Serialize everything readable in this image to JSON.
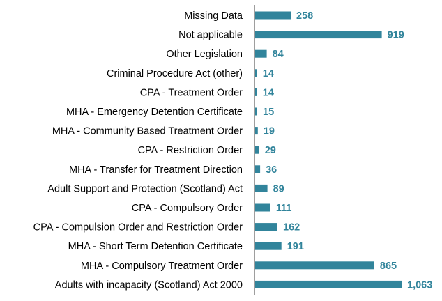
{
  "chart_data": {
    "type": "bar",
    "orientation": "horizontal",
    "categories": [
      "Missing Data",
      "Not applicable",
      "Other Legislation",
      "Criminal Procedure Act (other)",
      "CPA - Treatment Order",
      "MHA - Emergency Detention Certificate",
      "MHA - Community Based Treatment Order",
      "CPA - Restriction Order",
      "MHA - Transfer for Treatment Direction",
      "Adult Support and Protection (Scotland) Act",
      "CPA - Compulsory Order",
      "CPA - Compulsion Order and Restriction Order",
      "MHA - Short Term Detention Certificate",
      "MHA - Compulsory Treatment Order",
      "Adults with incapacity (Scotland) Act 2000"
    ],
    "values": [
      258,
      919,
      84,
      14,
      14,
      15,
      19,
      29,
      36,
      89,
      111,
      162,
      191,
      865,
      1063
    ],
    "value_labels": [
      "258",
      "919",
      "84",
      "14",
      "14",
      "15",
      "19",
      "29",
      "36",
      "89",
      "111",
      "162",
      "191",
      "865",
      "1,063"
    ],
    "xlim": [
      0,
      1063
    ],
    "grid": false,
    "legend": "none",
    "bar_color": "#31849b",
    "value_label_color": "#31849b"
  }
}
